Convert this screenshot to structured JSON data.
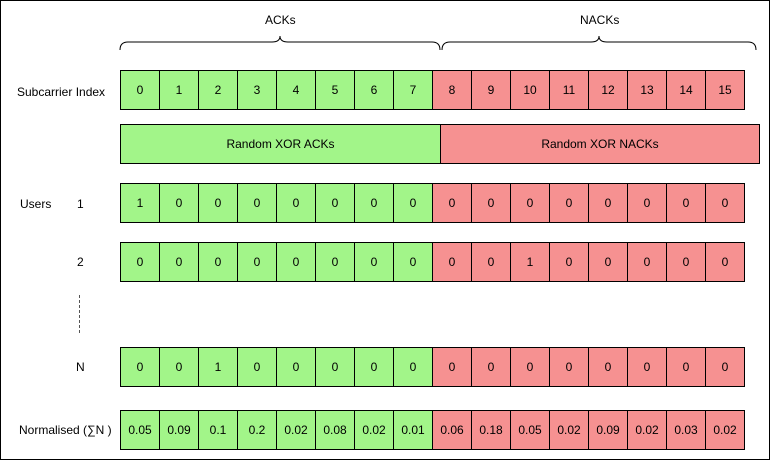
{
  "header": {
    "acks": "ACKs",
    "nacks": "NACKs"
  },
  "labels": {
    "subcarrier_index": "Subcarrier Index",
    "users": "Users",
    "normalised": "Normalised (∑N )"
  },
  "subcarrier_index": [
    "0",
    "1",
    "2",
    "3",
    "4",
    "5",
    "6",
    "7",
    "8",
    "9",
    "10",
    "11",
    "12",
    "13",
    "14",
    "15"
  ],
  "bands": {
    "acks": "Random XOR ACKs",
    "nacks": "Random XOR NACKs"
  },
  "users": [
    {
      "id": "1",
      "bits": [
        "1",
        "0",
        "0",
        "0",
        "0",
        "0",
        "0",
        "0",
        "0",
        "0",
        "0",
        "0",
        "0",
        "0",
        "0",
        "0"
      ]
    },
    {
      "id": "2",
      "bits": [
        "0",
        "0",
        "0",
        "0",
        "0",
        "0",
        "0",
        "0",
        "0",
        "0",
        "1",
        "0",
        "0",
        "0",
        "0",
        "0"
      ]
    },
    {
      "id": "N",
      "bits": [
        "0",
        "0",
        "1",
        "0",
        "0",
        "0",
        "0",
        "0",
        "0",
        "0",
        "0",
        "0",
        "0",
        "0",
        "0",
        "0"
      ]
    }
  ],
  "normalised": [
    "0.05",
    "0.09",
    "0.1",
    "0.2",
    "0.02",
    "0.08",
    "0.02",
    "0.01",
    "0.06",
    "0.18",
    "0.05",
    "0.02",
    "0.09",
    "0.02",
    "0.03",
    "0.02"
  ],
  "colors": {
    "ack": "#a2f589",
    "nack": "#f69191"
  }
}
